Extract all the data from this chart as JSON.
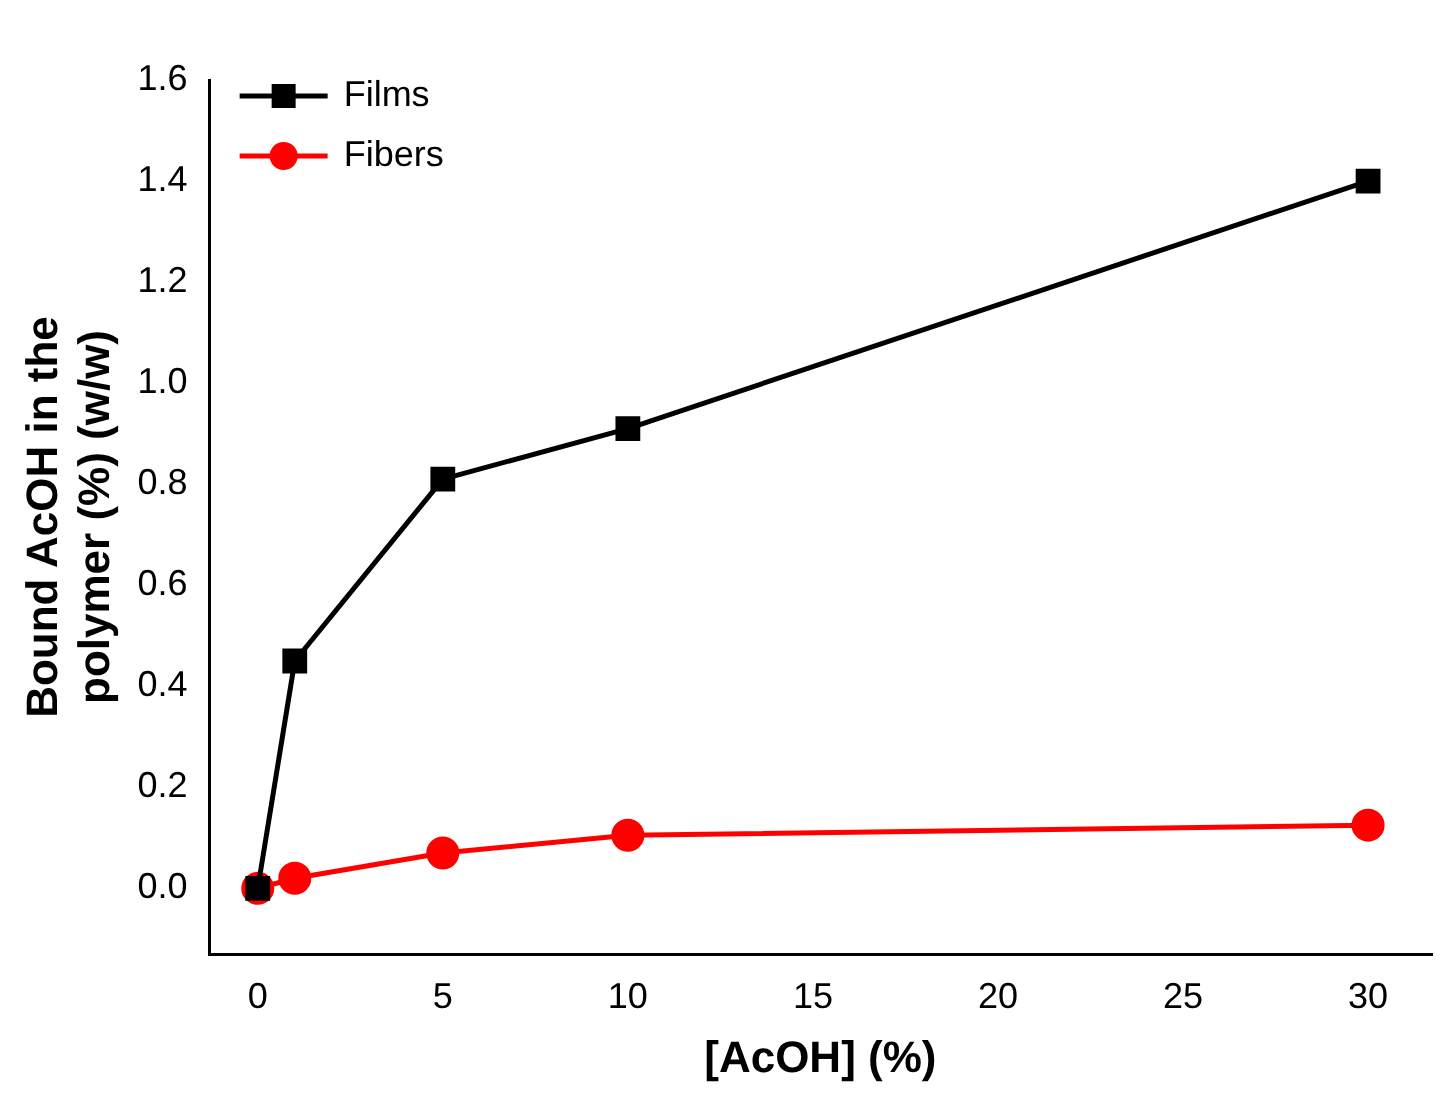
{
  "chart_data": {
    "type": "line",
    "xlabel": "[AcOH] (%)",
    "ylabel": "Bound AcOH in the polymer (%) (w/w)",
    "x": [
      0,
      1,
      5,
      10,
      30
    ],
    "series": [
      {
        "name": "Films",
        "color": "#000000",
        "marker": "square",
        "values": [
          0,
          0.45,
          0.81,
          0.91,
          1.4
        ]
      },
      {
        "name": "Fibers",
        "color": "#ff0000",
        "marker": "circle",
        "values": [
          0,
          0.02,
          0.07,
          0.105,
          0.125
        ]
      }
    ],
    "xlim": [
      -1.3,
      31.7
    ],
    "xticks": [
      0,
      5,
      10,
      15,
      20,
      25,
      30
    ],
    "ylim": [
      -0.13,
      1.6
    ],
    "yticks": [
      {
        "value": 0,
        "label": "0.0"
      },
      {
        "value": 0.2,
        "label": "0.2"
      },
      {
        "value": 0.4,
        "label": "0.4"
      },
      {
        "value": 0.6,
        "label": "0.6"
      },
      {
        "value": 0.8,
        "label": "0.8"
      },
      {
        "value": 1,
        "label": "1.0"
      },
      {
        "value": 1.2,
        "label": "1.2"
      },
      {
        "value": 1.4,
        "label": "1.4"
      },
      {
        "value": 1.6,
        "label": "1.6"
      }
    ],
    "legend": "top left",
    "grid": false,
    "line_style": "solid"
  }
}
